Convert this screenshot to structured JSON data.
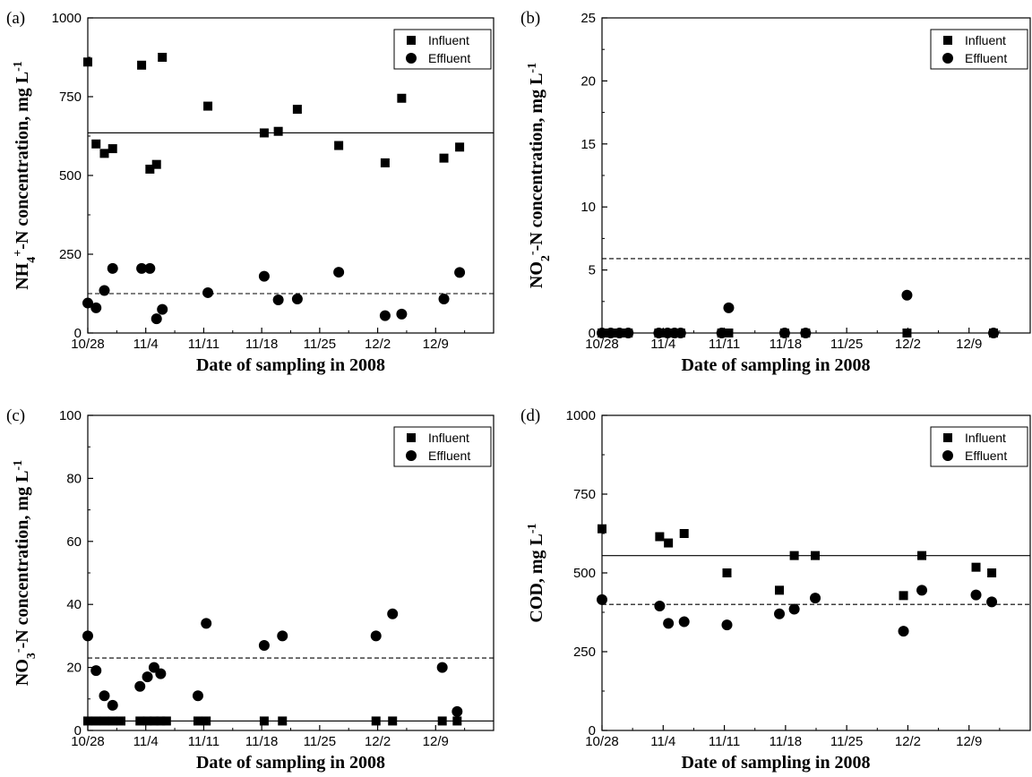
{
  "chart_data": [
    {
      "panel": "(a)",
      "type": "scatter",
      "xlabel": "Date of sampling in 2008",
      "ylabel": "NH4+-N concentration, mg L-1",
      "ylabel_parts": [
        {
          "t": "NH",
          "s": "n"
        },
        {
          "t": "4",
          "s": "sub"
        },
        {
          "t": "+",
          "s": "sup"
        },
        {
          "t": "-N concentration, mg L",
          "s": "n"
        },
        {
          "t": "-1",
          "s": "sup"
        }
      ],
      "xlim": [
        0,
        49
      ],
      "ylim": [
        0,
        1000
      ],
      "xticks": [
        {
          "v": 0,
          "label": "10/28"
        },
        {
          "v": 7,
          "label": "11/4"
        },
        {
          "v": 14,
          "label": "11/11"
        },
        {
          "v": 21,
          "label": "11/18"
        },
        {
          "v": 28,
          "label": "11/25"
        },
        {
          "v": 35,
          "label": "12/2"
        },
        {
          "v": 42,
          "label": "12/9"
        }
      ],
      "yticks": [
        {
          "v": 0,
          "label": "0"
        },
        {
          "v": 250,
          "label": "250"
        },
        {
          "v": 500,
          "label": "500"
        },
        {
          "v": 750,
          "label": "750"
        },
        {
          "v": 1000,
          "label": "1000"
        }
      ],
      "legend": [
        "Influent",
        "Effluent"
      ],
      "legend_position": "top-right",
      "series": [
        {
          "name": "Influent",
          "marker": "square",
          "points": [
            [
              0,
              860
            ],
            [
              1,
              600
            ],
            [
              2,
              570
            ],
            [
              3,
              585
            ],
            [
              6.5,
              850
            ],
            [
              7.5,
              520
            ],
            [
              8.3,
              535
            ],
            [
              9,
              875
            ],
            [
              14.5,
              720
            ],
            [
              21.3,
              635
            ],
            [
              23,
              640
            ],
            [
              25.3,
              710
            ],
            [
              30.3,
              595
            ],
            [
              35.9,
              540
            ],
            [
              37.9,
              745
            ],
            [
              43,
              555
            ],
            [
              44.9,
              590
            ]
          ]
        },
        {
          "name": "Effluent",
          "marker": "circle",
          "points": [
            [
              0,
              95
            ],
            [
              1,
              80
            ],
            [
              2,
              135
            ],
            [
              3,
              205
            ],
            [
              6.5,
              205
            ],
            [
              7.5,
              205
            ],
            [
              8.3,
              45
            ],
            [
              9,
              75
            ],
            [
              14.5,
              128
            ],
            [
              21.3,
              180
            ],
            [
              23,
              105
            ],
            [
              25.3,
              108
            ],
            [
              30.3,
              193
            ],
            [
              35.9,
              55
            ],
            [
              37.9,
              60
            ],
            [
              43,
              108
            ],
            [
              44.9,
              192
            ]
          ]
        }
      ],
      "hlines": [
        {
          "y": 635,
          "style": "solid"
        },
        {
          "y": 125,
          "style": "dashed"
        }
      ]
    },
    {
      "panel": "(b)",
      "type": "scatter",
      "xlabel": "Date of sampling in 2008",
      "ylabel": "NO2--N concentration, mg L-1",
      "ylabel_parts": [
        {
          "t": "NO",
          "s": "n"
        },
        {
          "t": "2",
          "s": "sub"
        },
        {
          "t": "-",
          "s": "sup"
        },
        {
          "t": "-N concentration, mg L",
          "s": "n"
        },
        {
          "t": "-1",
          "s": "sup"
        }
      ],
      "xlim": [
        0,
        49
      ],
      "ylim": [
        0,
        25
      ],
      "xticks": [
        {
          "v": 0,
          "label": "10/28"
        },
        {
          "v": 7,
          "label": "11/4"
        },
        {
          "v": 14,
          "label": "11/11"
        },
        {
          "v": 21,
          "label": "11/18"
        },
        {
          "v": 28,
          "label": "11/25"
        },
        {
          "v": 35,
          "label": "12/2"
        },
        {
          "v": 42,
          "label": "12/9"
        }
      ],
      "yticks": [
        {
          "v": 0,
          "label": "0"
        },
        {
          "v": 5,
          "label": "5"
        },
        {
          "v": 10,
          "label": "10"
        },
        {
          "v": 15,
          "label": "15"
        },
        {
          "v": 20,
          "label": "20"
        },
        {
          "v": 25,
          "label": "25"
        }
      ],
      "legend": [
        "Influent",
        "Effluent"
      ],
      "legend_position": "top-right",
      "series": [
        {
          "name": "Influent",
          "marker": "square",
          "points": [
            [
              0,
              0
            ],
            [
              1,
              0
            ],
            [
              2,
              0
            ],
            [
              3,
              0
            ],
            [
              6.5,
              0
            ],
            [
              7.5,
              0
            ],
            [
              8.3,
              0
            ],
            [
              9,
              0
            ],
            [
              13.7,
              0
            ],
            [
              14.5,
              0
            ],
            [
              20.9,
              0
            ],
            [
              23.3,
              0
            ],
            [
              34.9,
              0
            ],
            [
              44.8,
              0
            ]
          ]
        },
        {
          "name": "Effluent",
          "marker": "circle",
          "points": [
            [
              0,
              0
            ],
            [
              1,
              0
            ],
            [
              2,
              0
            ],
            [
              3,
              0
            ],
            [
              6.5,
              0
            ],
            [
              7.5,
              0
            ],
            [
              8.3,
              0
            ],
            [
              9,
              0
            ],
            [
              13.7,
              0
            ],
            [
              14.5,
              2
            ],
            [
              20.9,
              0
            ],
            [
              23.3,
              0
            ],
            [
              34.9,
              3
            ],
            [
              44.8,
              0
            ]
          ]
        }
      ],
      "hlines": [
        {
          "y": 5.9,
          "style": "dashed"
        }
      ]
    },
    {
      "panel": "(c)",
      "type": "scatter",
      "xlabel": "Date of sampling in 2008",
      "ylabel": "NO3--N concentration, mg L-1",
      "ylabel_parts": [
        {
          "t": "NO",
          "s": "n"
        },
        {
          "t": "3",
          "s": "sub"
        },
        {
          "t": "-",
          "s": "sup"
        },
        {
          "t": "-N concentration, mg L",
          "s": "n"
        },
        {
          "t": "-1",
          "s": "sup"
        }
      ],
      "xlim": [
        0,
        49
      ],
      "ylim": [
        0,
        100
      ],
      "xticks": [
        {
          "v": 0,
          "label": "10/28"
        },
        {
          "v": 7,
          "label": "11/4"
        },
        {
          "v": 14,
          "label": "11/11"
        },
        {
          "v": 21,
          "label": "11/18"
        },
        {
          "v": 28,
          "label": "11/25"
        },
        {
          "v": 35,
          "label": "12/2"
        },
        {
          "v": 42,
          "label": "12/9"
        }
      ],
      "yticks": [
        {
          "v": 0,
          "label": "0"
        },
        {
          "v": 20,
          "label": "20"
        },
        {
          "v": 40,
          "label": "40"
        },
        {
          "v": 60,
          "label": "60"
        },
        {
          "v": 80,
          "label": "80"
        },
        {
          "v": 100,
          "label": "100"
        }
      ],
      "legend": [
        "Influent",
        "Effluent"
      ],
      "legend_position": "top-right",
      "series": [
        {
          "name": "Influent",
          "marker": "square",
          "points": [
            [
              0,
              3
            ],
            [
              1,
              3
            ],
            [
              2,
              3
            ],
            [
              3,
              3
            ],
            [
              4,
              3
            ],
            [
              6.3,
              3
            ],
            [
              7.2,
              3
            ],
            [
              8,
              3
            ],
            [
              8.8,
              3
            ],
            [
              9.5,
              3
            ],
            [
              13.3,
              3
            ],
            [
              14.3,
              3
            ],
            [
              21.3,
              3
            ],
            [
              23.5,
              3
            ],
            [
              34.8,
              3
            ],
            [
              36.8,
              3
            ],
            [
              42.8,
              3
            ],
            [
              44.6,
              3
            ]
          ]
        },
        {
          "name": "Effluent",
          "marker": "circle",
          "points": [
            [
              0,
              30
            ],
            [
              1,
              19
            ],
            [
              2,
              11
            ],
            [
              3,
              8
            ],
            [
              6.3,
              14
            ],
            [
              7.2,
              17
            ],
            [
              8,
              20
            ],
            [
              8.8,
              18
            ],
            [
              13.3,
              11
            ],
            [
              14.3,
              34
            ],
            [
              21.3,
              27
            ],
            [
              23.5,
              30
            ],
            [
              34.8,
              30
            ],
            [
              36.8,
              37
            ],
            [
              42.8,
              20
            ],
            [
              44.6,
              6
            ]
          ]
        }
      ],
      "hlines": [
        {
          "y": 3,
          "style": "solid"
        },
        {
          "y": 23,
          "style": "dashed"
        }
      ]
    },
    {
      "panel": "(d)",
      "type": "scatter",
      "xlabel": "Date of sampling in 2008",
      "ylabel": "COD, mg L-1",
      "ylabel_parts": [
        {
          "t": "COD, mg L",
          "s": "n"
        },
        {
          "t": "-1",
          "s": "sup"
        }
      ],
      "xlim": [
        0,
        49
      ],
      "ylim": [
        0,
        1000
      ],
      "xticks": [
        {
          "v": 0,
          "label": "10/28"
        },
        {
          "v": 7,
          "label": "11/4"
        },
        {
          "v": 14,
          "label": "11/11"
        },
        {
          "v": 21,
          "label": "11/18"
        },
        {
          "v": 28,
          "label": "11/25"
        },
        {
          "v": 35,
          "label": "12/2"
        },
        {
          "v": 42,
          "label": "12/9"
        }
      ],
      "yticks": [
        {
          "v": 0,
          "label": "0"
        },
        {
          "v": 250,
          "label": "250"
        },
        {
          "v": 500,
          "label": "500"
        },
        {
          "v": 750,
          "label": "750"
        },
        {
          "v": 1000,
          "label": "1000"
        }
      ],
      "legend": [
        "Influent",
        "Effluent"
      ],
      "legend_position": "top-right",
      "series": [
        {
          "name": "Influent",
          "marker": "square",
          "points": [
            [
              0,
              640
            ],
            [
              6.6,
              615
            ],
            [
              7.6,
              595
            ],
            [
              9.4,
              625
            ],
            [
              14.3,
              500
            ],
            [
              20.3,
              445
            ],
            [
              22,
              555
            ],
            [
              24.4,
              555
            ],
            [
              34.5,
              428
            ],
            [
              36.6,
              555
            ],
            [
              42.8,
              518
            ],
            [
              44.6,
              500
            ]
          ]
        },
        {
          "name": "Effluent",
          "marker": "circle",
          "points": [
            [
              0,
              415
            ],
            [
              6.6,
              395
            ],
            [
              7.6,
              340
            ],
            [
              9.4,
              345
            ],
            [
              14.3,
              335
            ],
            [
              20.3,
              370
            ],
            [
              22,
              385
            ],
            [
              24.4,
              420
            ],
            [
              34.5,
              315
            ],
            [
              36.6,
              445
            ],
            [
              42.8,
              430
            ],
            [
              44.6,
              408
            ]
          ]
        }
      ],
      "hlines": [
        {
          "y": 555,
          "style": "solid"
        },
        {
          "y": 400,
          "style": "dashed"
        }
      ]
    }
  ]
}
